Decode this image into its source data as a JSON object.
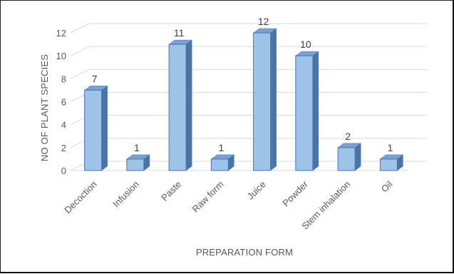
{
  "chart_data": {
    "type": "bar",
    "title": "",
    "xlabel": "PREPARATION FORM",
    "ylabel": "NO OF PLANT SPECIES",
    "categories": [
      "Decoction",
      "Infusion",
      "Paste",
      "Raw form",
      "Juice",
      "Powder",
      "Stem inhalation",
      "Oil"
    ],
    "values": [
      7,
      1,
      11,
      1,
      12,
      10,
      2,
      1
    ],
    "yticks": [
      0,
      2,
      4,
      6,
      8,
      10,
      12
    ],
    "ylim": [
      0,
      12
    ],
    "grid": true,
    "legend": "none",
    "bar_style": "3d",
    "colors": {
      "bar_front": "#9dc3e6",
      "bar_side": "#4a74a6",
      "bar_top": "#7aa1cc",
      "bar_edge": "#4472c4",
      "grid": "#d9d9d9"
    }
  }
}
